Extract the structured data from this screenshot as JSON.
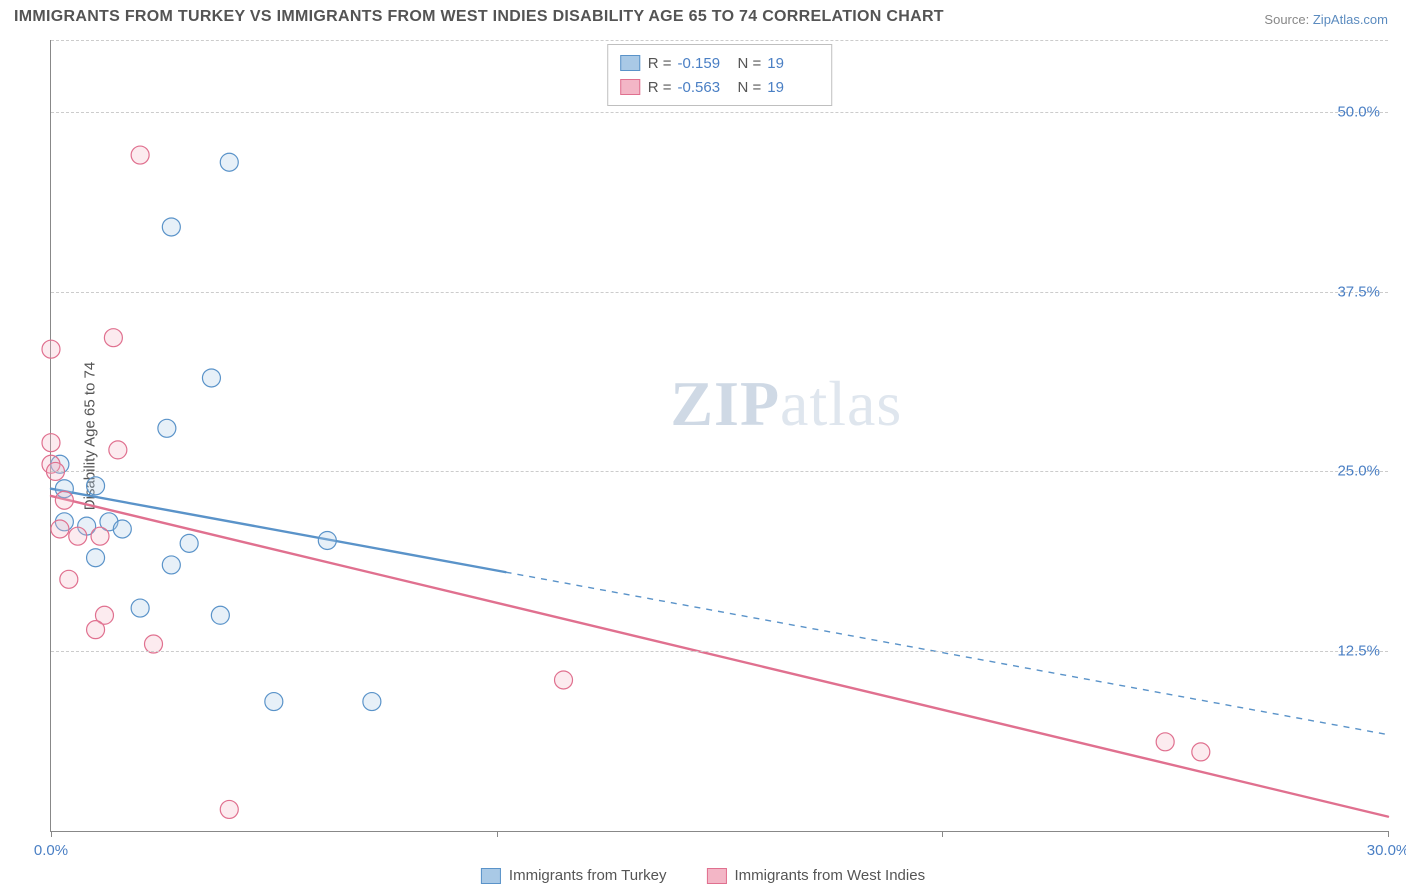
{
  "title": "IMMIGRANTS FROM TURKEY VS IMMIGRANTS FROM WEST INDIES DISABILITY AGE 65 TO 74 CORRELATION CHART",
  "source_label": "Source:",
  "source_name": "ZipAtlas.com",
  "watermark_bold": "ZIP",
  "watermark_rest": "atlas",
  "chart": {
    "type": "scatter-with-regression",
    "y_axis_title": "Disability Age 65 to 74",
    "xlim": [
      0,
      30
    ],
    "ylim": [
      0,
      55
    ],
    "x_ticks": [
      0,
      10,
      20,
      30
    ],
    "x_tick_labels": [
      "0.0%",
      "",
      "",
      "30.0%"
    ],
    "y_gridlines": [
      12.5,
      25.0,
      37.5,
      50.0,
      55.0
    ],
    "y_tick_labels": [
      "12.5%",
      "25.0%",
      "37.5%",
      "50.0%",
      ""
    ],
    "grid_color": "#cccccc",
    "axis_color": "#888888",
    "background_color": "#ffffff",
    "text_color": "#555555",
    "tick_label_color": "#4a7fc4",
    "title_color": "#545454",
    "title_fontsize": 16,
    "label_fontsize": 15,
    "marker_radius": 9,
    "marker_stroke_width": 1.2,
    "marker_fill_opacity": 0.28,
    "line_width_solid": 2.4,
    "line_width_dashed": 1.4,
    "series": [
      {
        "id": "turkey",
        "label": "Immigrants from Turkey",
        "color_stroke": "#5a93c9",
        "color_fill": "#a9c9e6",
        "R": "-0.159",
        "N": "19",
        "points": [
          [
            4.0,
            46.5
          ],
          [
            2.7,
            42.0
          ],
          [
            1.0,
            24.0
          ],
          [
            0.2,
            25.5
          ],
          [
            0.3,
            23.8
          ],
          [
            0.3,
            21.5
          ],
          [
            0.8,
            21.2
          ],
          [
            1.3,
            21.5
          ],
          [
            1.6,
            21.0
          ],
          [
            3.6,
            31.5
          ],
          [
            2.6,
            28.0
          ],
          [
            1.0,
            19.0
          ],
          [
            2.7,
            18.5
          ],
          [
            3.1,
            20.0
          ],
          [
            6.2,
            20.2
          ],
          [
            2.0,
            15.5
          ],
          [
            3.8,
            15.0
          ],
          [
            5.0,
            9.0
          ],
          [
            7.2,
            9.0
          ]
        ],
        "regression": {
          "x1": 0,
          "y1": 23.8,
          "x2_solid": 10.2,
          "y2_solid": 18.0,
          "x2_dashed": 30,
          "y2_dashed": 6.7
        }
      },
      {
        "id": "west_indies",
        "label": "Immigrants from West Indies",
        "color_stroke": "#e0708f",
        "color_fill": "#f3b6c6",
        "R": "-0.563",
        "N": "19",
        "points": [
          [
            2.0,
            47.0
          ],
          [
            1.4,
            34.3
          ],
          [
            0.0,
            33.5
          ],
          [
            0.0,
            27.0
          ],
          [
            0.0,
            25.5
          ],
          [
            0.1,
            25.0
          ],
          [
            1.5,
            26.5
          ],
          [
            0.3,
            23.0
          ],
          [
            1.1,
            20.5
          ],
          [
            0.6,
            20.5
          ],
          [
            0.2,
            21.0
          ],
          [
            0.4,
            17.5
          ],
          [
            1.2,
            15.0
          ],
          [
            1.0,
            14.0
          ],
          [
            2.3,
            13.0
          ],
          [
            11.5,
            10.5
          ],
          [
            4.0,
            1.5
          ],
          [
            25.0,
            6.2
          ],
          [
            25.8,
            5.5
          ]
        ],
        "regression": {
          "x1": 0,
          "y1": 23.3,
          "x2_solid": 30,
          "y2_solid": 1.0,
          "x2_dashed": 30,
          "y2_dashed": 1.0
        }
      }
    ],
    "legend_top": {
      "R_label": "R  =",
      "N_label": "N  ="
    }
  }
}
